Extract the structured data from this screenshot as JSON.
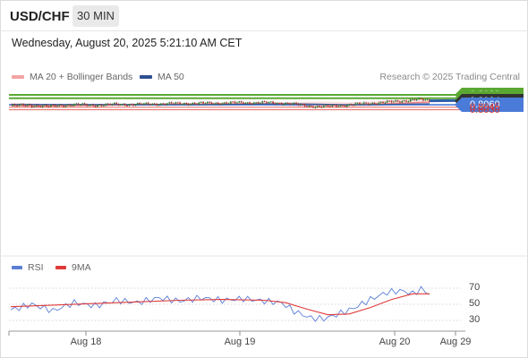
{
  "header": {
    "symbol": "USD/CHF",
    "timeframe": "30 MIN",
    "datetime": "Wednesday, August 20, 2025 5:21:10 AM CET"
  },
  "legend": {
    "ma20": "MA 20 + Bollinger Bands",
    "ma50": "MA 50",
    "rsi": "RSI",
    "ma9": "9MA",
    "copyright": "Research © 2025 Trading Central"
  },
  "colors": {
    "resistance": "#5aa832",
    "support": "#4a7bd8",
    "lower": "#d9322b",
    "current": "#333333",
    "ma20": "#f08080",
    "ma50": "#3a5a99",
    "arrow": "#2e5ea8",
    "up_candle": "#2e8b2e",
    "down_candle": "#c0392b",
    "rsi": "#5b7fd6",
    "rsi_ma": "#e03a3a"
  },
  "levels": [
    {
      "value": "0.8120",
      "kind": "resistance",
      "style": "box"
    },
    {
      "value": "0.8100",
      "kind": "resistance",
      "style": "box"
    },
    {
      "value": "0.8084",
      "kind": "current",
      "style": "box"
    },
    {
      "value": "0.8060",
      "kind": "support",
      "style": "box"
    },
    {
      "value": "0.8045",
      "kind": "lower",
      "style": "plain"
    },
    {
      "value": "0.8030",
      "kind": "lower",
      "style": "plain"
    }
  ],
  "rsi_scale": [
    "70",
    "50",
    "30"
  ],
  "x_axis": [
    "Aug 18",
    "Aug 19",
    "Aug 20",
    "Aug 29"
  ],
  "chart_data": {
    "type": "candlestick",
    "instrument": "USD/CHF",
    "timeframe": "30 MIN",
    "x_ticks": [
      "Aug 18",
      "Aug 19",
      "Aug 20",
      "Aug 29"
    ],
    "levels": [
      0.812,
      0.81,
      0.8084,
      0.806,
      0.8045,
      0.803
    ],
    "price_path": [
      [
        0,
        0.8053
      ],
      [
        8,
        0.8058
      ],
      [
        16,
        0.8052
      ],
      [
        18,
        0.8049
      ],
      [
        22,
        0.8056
      ],
      [
        30,
        0.8061
      ],
      [
        38,
        0.8058
      ],
      [
        44,
        0.8059
      ],
      [
        50,
        0.8064
      ],
      [
        58,
        0.8062
      ],
      [
        66,
        0.8065
      ],
      [
        72,
        0.8066
      ],
      [
        80,
        0.8068
      ],
      [
        88,
        0.8069
      ],
      [
        96,
        0.807
      ],
      [
        104,
        0.8072
      ],
      [
        112,
        0.8073
      ],
      [
        120,
        0.8073
      ],
      [
        130,
        0.8069
      ],
      [
        136,
        0.806
      ],
      [
        142,
        0.8052
      ],
      [
        146,
        0.8049
      ],
      [
        150,
        0.805
      ],
      [
        154,
        0.8055
      ],
      [
        160,
        0.806
      ],
      [
        166,
        0.8066
      ],
      [
        172,
        0.8071
      ],
      [
        178,
        0.8076
      ],
      [
        184,
        0.8082
      ],
      [
        188,
        0.8088
      ],
      [
        192,
        0.8092
      ],
      [
        196,
        0.8088
      ],
      [
        198,
        0.8084
      ]
    ],
    "ma20_path": [
      [
        0,
        0.8055
      ],
      [
        20,
        0.8055
      ],
      [
        40,
        0.8057
      ],
      [
        60,
        0.8061
      ],
      [
        80,
        0.8064
      ],
      [
        100,
        0.8066
      ],
      [
        120,
        0.8067
      ],
      [
        135,
        0.8066
      ],
      [
        145,
        0.8062
      ],
      [
        155,
        0.8058
      ],
      [
        165,
        0.8061
      ],
      [
        175,
        0.8066
      ],
      [
        185,
        0.807
      ],
      [
        195,
        0.8075
      ],
      [
        198,
        0.8076
      ]
    ],
    "ma50_path": [
      [
        0,
        0.8062
      ],
      [
        30,
        0.8061
      ],
      [
        60,
        0.8061
      ],
      [
        90,
        0.8061
      ],
      [
        110,
        0.8063
      ],
      [
        130,
        0.8066
      ],
      [
        145,
        0.8064
      ],
      [
        160,
        0.806
      ],
      [
        175,
        0.8062
      ],
      [
        190,
        0.8065
      ],
      [
        198,
        0.8066
      ]
    ],
    "bollinger": {
      "upper": [
        [
          0,
          0.8074
        ],
        [
          15,
          0.8066
        ],
        [
          30,
          0.8062
        ],
        [
          45,
          0.8064
        ],
        [
          60,
          0.8068
        ],
        [
          75,
          0.8071
        ],
        [
          95,
          0.8073
        ],
        [
          115,
          0.8074
        ],
        [
          130,
          0.8077
        ],
        [
          140,
          0.808
        ],
        [
          150,
          0.808
        ],
        [
          160,
          0.8076
        ],
        [
          170,
          0.8082
        ],
        [
          180,
          0.809
        ],
        [
          190,
          0.8094
        ],
        [
          198,
          0.8095
        ]
      ],
      "lower": [
        [
          0,
          0.805
        ],
        [
          15,
          0.8047
        ],
        [
          30,
          0.8049
        ],
        [
          45,
          0.8054
        ],
        [
          60,
          0.8057
        ],
        [
          75,
          0.8058
        ],
        [
          95,
          0.806
        ],
        [
          115,
          0.8058
        ],
        [
          130,
          0.8052
        ],
        [
          140,
          0.8045
        ],
        [
          150,
          0.8043
        ],
        [
          160,
          0.8046
        ],
        [
          170,
          0.805
        ],
        [
          180,
          0.8055
        ],
        [
          190,
          0.8059
        ],
        [
          198,
          0.8062
        ]
      ]
    },
    "projection": {
      "from": [
        198,
        0.8084
      ],
      "to": [
        225,
        0.812
      ]
    },
    "rsi": [
      [
        0,
        43
      ],
      [
        10,
        50
      ],
      [
        20,
        42
      ],
      [
        30,
        52
      ],
      [
        40,
        48
      ],
      [
        50,
        55
      ],
      [
        60,
        52
      ],
      [
        70,
        58
      ],
      [
        80,
        54
      ],
      [
        90,
        58
      ],
      [
        100,
        55
      ],
      [
        110,
        57
      ],
      [
        120,
        54
      ],
      [
        128,
        52
      ],
      [
        135,
        40
      ],
      [
        142,
        33
      ],
      [
        148,
        32
      ],
      [
        155,
        38
      ],
      [
        162,
        45
      ],
      [
        170,
        56
      ],
      [
        178,
        65
      ],
      [
        185,
        67
      ],
      [
        190,
        63
      ],
      [
        194,
        69
      ],
      [
        198,
        63
      ]
    ],
    "rsi_ma": [
      [
        0,
        47
      ],
      [
        20,
        49
      ],
      [
        40,
        51
      ],
      [
        60,
        53
      ],
      [
        80,
        55
      ],
      [
        100,
        56
      ],
      [
        120,
        55
      ],
      [
        130,
        52
      ],
      [
        140,
        44
      ],
      [
        150,
        37
      ],
      [
        160,
        38
      ],
      [
        170,
        46
      ],
      [
        180,
        56
      ],
      [
        190,
        63
      ],
      [
        198,
        63
      ]
    ],
    "rsi_levels": [
      70,
      50,
      30
    ]
  }
}
